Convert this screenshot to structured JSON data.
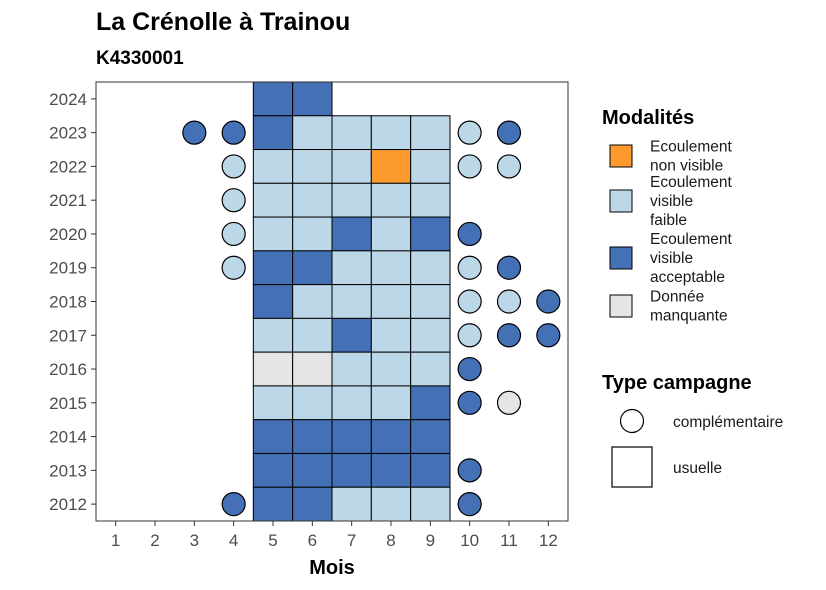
{
  "chart_data": {
    "type": "heatmap",
    "title": "La Crénolle à Trainou",
    "subtitle": "K4330001",
    "xlabel": "Mois",
    "ylabel": "",
    "x_ticks": [
      1,
      2,
      3,
      4,
      5,
      6,
      7,
      8,
      9,
      10,
      11,
      12
    ],
    "y_ticks": [
      2012,
      2013,
      2014,
      2015,
      2016,
      2017,
      2018,
      2019,
      2020,
      2021,
      2022,
      2023,
      2024
    ],
    "xlim": [
      0.5,
      12.5
    ],
    "ylim": [
      2011.5,
      2024.5
    ],
    "categories": {
      "non_visible": {
        "label": "Ecoulement\nnon visible",
        "color": "#fd9a2e"
      },
      "faible": {
        "label": "Ecoulement\nvisible\nfaible",
        "color": "#bcd7e8"
      },
      "acceptable": {
        "label": "Ecoulement\nvisible\nacceptable",
        "color": "#4471b6"
      },
      "manquante": {
        "label": "Donnée\nmanquante",
        "color": "#e5e5e5"
      }
    },
    "legend_modalites_title": "Modalités",
    "legend_modalites_order": [
      "non_visible",
      "faible",
      "acceptable",
      "manquante"
    ],
    "legend_type_title": "Type campagne",
    "legend_type_items": [
      {
        "shape": "circle",
        "label": "complémentaire"
      },
      {
        "shape": "square",
        "label": "usuelle"
      }
    ],
    "usuelle": [
      {
        "year": 2024,
        "month": 5,
        "cat": "acceptable"
      },
      {
        "year": 2024,
        "month": 6,
        "cat": "acceptable"
      },
      {
        "year": 2023,
        "month": 5,
        "cat": "acceptable"
      },
      {
        "year": 2023,
        "month": 6,
        "cat": "faible"
      },
      {
        "year": 2023,
        "month": 7,
        "cat": "faible"
      },
      {
        "year": 2023,
        "month": 8,
        "cat": "faible"
      },
      {
        "year": 2023,
        "month": 9,
        "cat": "faible"
      },
      {
        "year": 2022,
        "month": 5,
        "cat": "faible"
      },
      {
        "year": 2022,
        "month": 6,
        "cat": "faible"
      },
      {
        "year": 2022,
        "month": 7,
        "cat": "faible"
      },
      {
        "year": 2022,
        "month": 8,
        "cat": "non_visible"
      },
      {
        "year": 2022,
        "month": 9,
        "cat": "faible"
      },
      {
        "year": 2021,
        "month": 5,
        "cat": "faible"
      },
      {
        "year": 2021,
        "month": 6,
        "cat": "faible"
      },
      {
        "year": 2021,
        "month": 7,
        "cat": "faible"
      },
      {
        "year": 2021,
        "month": 8,
        "cat": "faible"
      },
      {
        "year": 2021,
        "month": 9,
        "cat": "faible"
      },
      {
        "year": 2020,
        "month": 5,
        "cat": "faible"
      },
      {
        "year": 2020,
        "month": 6,
        "cat": "faible"
      },
      {
        "year": 2020,
        "month": 7,
        "cat": "acceptable"
      },
      {
        "year": 2020,
        "month": 8,
        "cat": "faible"
      },
      {
        "year": 2020,
        "month": 9,
        "cat": "acceptable"
      },
      {
        "year": 2019,
        "month": 5,
        "cat": "acceptable"
      },
      {
        "year": 2019,
        "month": 6,
        "cat": "acceptable"
      },
      {
        "year": 2019,
        "month": 7,
        "cat": "faible"
      },
      {
        "year": 2019,
        "month": 8,
        "cat": "faible"
      },
      {
        "year": 2019,
        "month": 9,
        "cat": "faible"
      },
      {
        "year": 2018,
        "month": 5,
        "cat": "acceptable"
      },
      {
        "year": 2018,
        "month": 6,
        "cat": "faible"
      },
      {
        "year": 2018,
        "month": 7,
        "cat": "faible"
      },
      {
        "year": 2018,
        "month": 8,
        "cat": "faible"
      },
      {
        "year": 2018,
        "month": 9,
        "cat": "faible"
      },
      {
        "year": 2017,
        "month": 5,
        "cat": "faible"
      },
      {
        "year": 2017,
        "month": 6,
        "cat": "faible"
      },
      {
        "year": 2017,
        "month": 7,
        "cat": "acceptable"
      },
      {
        "year": 2017,
        "month": 8,
        "cat": "faible"
      },
      {
        "year": 2017,
        "month": 9,
        "cat": "faible"
      },
      {
        "year": 2016,
        "month": 5,
        "cat": "manquante"
      },
      {
        "year": 2016,
        "month": 6,
        "cat": "manquante"
      },
      {
        "year": 2016,
        "month": 7,
        "cat": "faible"
      },
      {
        "year": 2016,
        "month": 8,
        "cat": "faible"
      },
      {
        "year": 2016,
        "month": 9,
        "cat": "faible"
      },
      {
        "year": 2015,
        "month": 5,
        "cat": "faible"
      },
      {
        "year": 2015,
        "month": 6,
        "cat": "faible"
      },
      {
        "year": 2015,
        "month": 7,
        "cat": "faible"
      },
      {
        "year": 2015,
        "month": 8,
        "cat": "faible"
      },
      {
        "year": 2015,
        "month": 9,
        "cat": "acceptable"
      },
      {
        "year": 2014,
        "month": 5,
        "cat": "acceptable"
      },
      {
        "year": 2014,
        "month": 6,
        "cat": "acceptable"
      },
      {
        "year": 2014,
        "month": 7,
        "cat": "acceptable"
      },
      {
        "year": 2014,
        "month": 8,
        "cat": "acceptable"
      },
      {
        "year": 2014,
        "month": 9,
        "cat": "acceptable"
      },
      {
        "year": 2013,
        "month": 5,
        "cat": "acceptable"
      },
      {
        "year": 2013,
        "month": 6,
        "cat": "acceptable"
      },
      {
        "year": 2013,
        "month": 7,
        "cat": "acceptable"
      },
      {
        "year": 2013,
        "month": 8,
        "cat": "acceptable"
      },
      {
        "year": 2013,
        "month": 9,
        "cat": "acceptable"
      },
      {
        "year": 2012,
        "month": 5,
        "cat": "acceptable"
      },
      {
        "year": 2012,
        "month": 6,
        "cat": "acceptable"
      },
      {
        "year": 2012,
        "month": 7,
        "cat": "faible"
      },
      {
        "year": 2012,
        "month": 8,
        "cat": "faible"
      },
      {
        "year": 2012,
        "month": 9,
        "cat": "faible"
      }
    ],
    "complementaire": [
      {
        "year": 2023,
        "month": 3,
        "cat": "acceptable"
      },
      {
        "year": 2023,
        "month": 4,
        "cat": "acceptable"
      },
      {
        "year": 2023,
        "month": 10,
        "cat": "faible"
      },
      {
        "year": 2023,
        "month": 11,
        "cat": "acceptable"
      },
      {
        "year": 2022,
        "month": 4,
        "cat": "faible"
      },
      {
        "year": 2022,
        "month": 10,
        "cat": "faible"
      },
      {
        "year": 2022,
        "month": 11,
        "cat": "faible"
      },
      {
        "year": 2021,
        "month": 4,
        "cat": "faible"
      },
      {
        "year": 2020,
        "month": 4,
        "cat": "faible"
      },
      {
        "year": 2020,
        "month": 10,
        "cat": "acceptable"
      },
      {
        "year": 2019,
        "month": 4,
        "cat": "faible"
      },
      {
        "year": 2019,
        "month": 10,
        "cat": "faible"
      },
      {
        "year": 2019,
        "month": 11,
        "cat": "acceptable"
      },
      {
        "year": 2018,
        "month": 10,
        "cat": "faible"
      },
      {
        "year": 2018,
        "month": 11,
        "cat": "faible"
      },
      {
        "year": 2018,
        "month": 12,
        "cat": "acceptable"
      },
      {
        "year": 2017,
        "month": 10,
        "cat": "faible"
      },
      {
        "year": 2017,
        "month": 11,
        "cat": "acceptable"
      },
      {
        "year": 2017,
        "month": 12,
        "cat": "acceptable"
      },
      {
        "year": 2016,
        "month": 10,
        "cat": "acceptable"
      },
      {
        "year": 2015,
        "month": 10,
        "cat": "acceptable"
      },
      {
        "year": 2015,
        "month": 11,
        "cat": "manquante"
      },
      {
        "year": 2013,
        "month": 10,
        "cat": "acceptable"
      },
      {
        "year": 2012,
        "month": 4,
        "cat": "acceptable"
      },
      {
        "year": 2012,
        "month": 10,
        "cat": "acceptable"
      }
    ]
  }
}
